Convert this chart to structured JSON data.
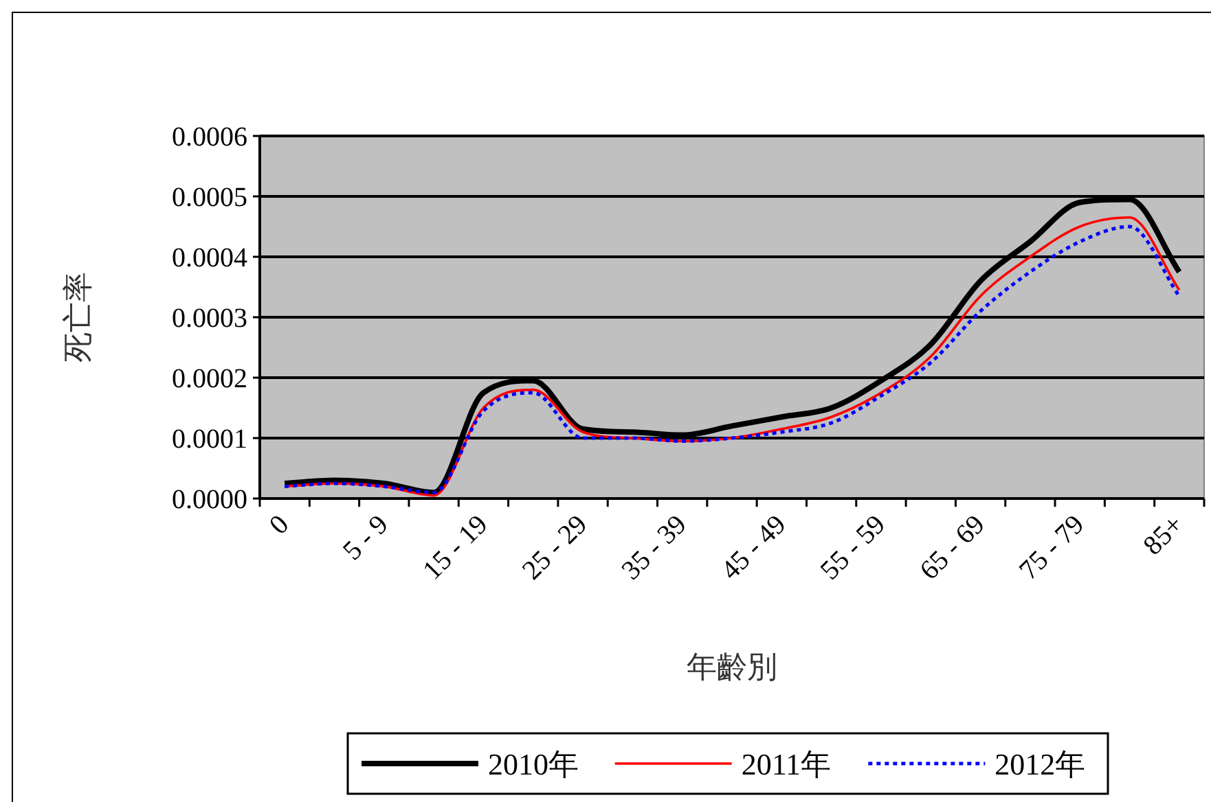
{
  "chart_data": {
    "type": "line",
    "xlabel": "年齡別",
    "ylabel": "死亡率",
    "categories": [
      "0",
      null,
      "5 - 9",
      null,
      "15 - 19",
      null,
      "25 - 29",
      null,
      "35 - 39",
      null,
      "45 - 49",
      null,
      "55 - 59",
      null,
      "65 - 69",
      null,
      "75 - 79",
      null,
      "85+"
    ],
    "series": [
      {
        "name": "2010年",
        "color": "#000000",
        "line_style": "solid",
        "values": [
          2.5e-05,
          3e-05,
          2.5e-05,
          1e-05,
          0.000175,
          0.000195,
          0.000115,
          0.00011,
          0.000105,
          0.00012,
          0.000135,
          0.00015,
          0.000195,
          0.000255,
          0.00036,
          0.000425,
          0.00049,
          0.000495,
          0.000375
        ]
      },
      {
        "name": "2011年",
        "color": "#ff0000",
        "line_style": "solid",
        "values": [
          2e-05,
          2.5e-05,
          2e-05,
          5e-06,
          0.00015,
          0.00018,
          0.00011,
          0.0001,
          9.5e-05,
          0.0001,
          0.000115,
          0.000135,
          0.000175,
          0.000235,
          0.000335,
          0.0004,
          0.00045,
          0.000465,
          0.000345
        ]
      },
      {
        "name": "2012年",
        "color": "#0000ff",
        "line_style": "dotted",
        "values": [
          2e-05,
          2.5e-05,
          2e-05,
          1e-05,
          0.000145,
          0.000175,
          0.0001,
          0.0001,
          9.5e-05,
          0.0001,
          0.00011,
          0.000125,
          0.00017,
          0.000225,
          0.00031,
          0.000375,
          0.000425,
          0.00045,
          0.000335
        ]
      }
    ],
    "ylim": [
      0,
      0.0006
    ],
    "yticks": [
      {
        "value": 0,
        "label": "0.0000"
      },
      {
        "value": 0.0001,
        "label": "0.0001"
      },
      {
        "value": 0.0002,
        "label": "0.0002"
      },
      {
        "value": 0.0003,
        "label": "0.0003"
      },
      {
        "value": 0.0004,
        "label": "0.0004"
      },
      {
        "value": 0.0005,
        "label": "0.0005"
      },
      {
        "value": 0.0006,
        "label": "0.0006"
      }
    ],
    "grid": "y",
    "legend": "bottom"
  }
}
